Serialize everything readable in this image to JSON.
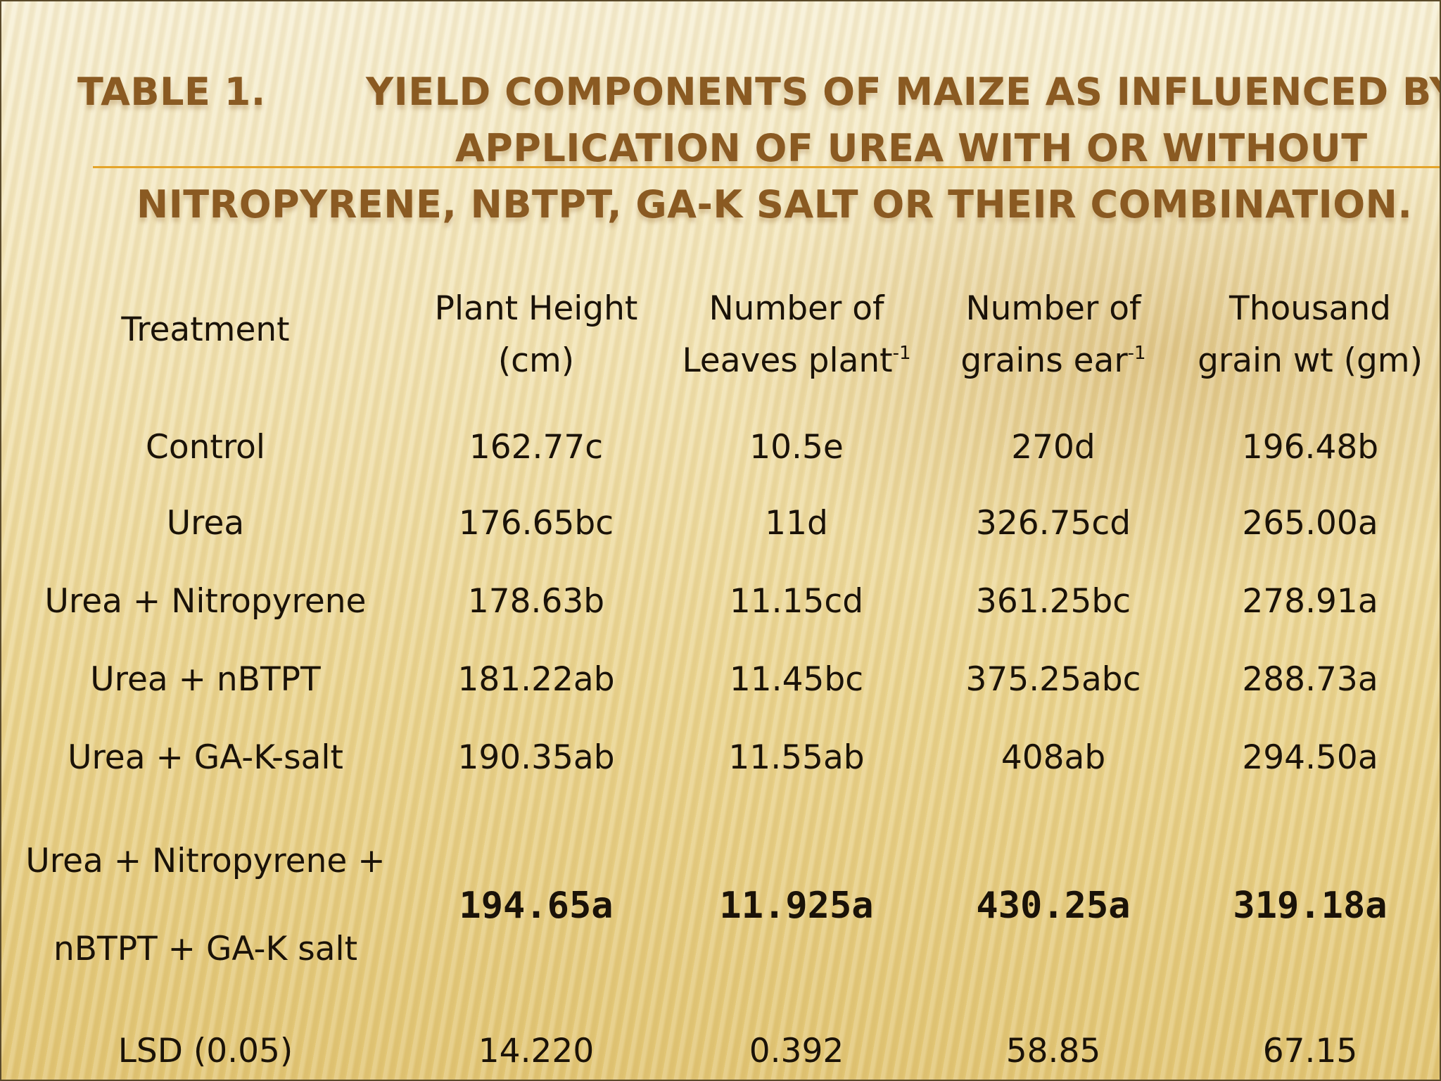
{
  "title": {
    "label": "Table 1.",
    "line1": "Yield components of maize as influenced by",
    "line2": "application of urea with or without",
    "line3": "Nitropyrene, NBTPT, GA-K salt or their combination."
  },
  "table": {
    "headers": {
      "treatment": "Treatment",
      "plant_height_1": "Plant Height",
      "plant_height_2": "(cm)",
      "leaves_1": "Number of",
      "leaves_2": "Leaves plant",
      "leaves_sup": "-1",
      "grains_1": "Number of",
      "grains_2": "grains ear",
      "grains_sup": "-1",
      "thousand_1": "Thousand",
      "thousand_2": "grain wt (gm)"
    },
    "rows": [
      {
        "treatment": "Control",
        "plant_height": "162.77c",
        "leaves": "10.5e",
        "grains": "270d",
        "thousand": "196.48b"
      },
      {
        "treatment": "Urea",
        "plant_height": "176.65bc",
        "leaves": "11d",
        "grains": "326.75cd",
        "thousand": "265.00a"
      },
      {
        "treatment": "Urea + Nitropyrene",
        "plant_height": "178.63b",
        "leaves": "11.15cd",
        "grains": "361.25bc",
        "thousand": "278.91a"
      },
      {
        "treatment": "Urea + nBTPT",
        "plant_height": "181.22ab",
        "leaves": "11.45bc",
        "grains": "375.25abc",
        "thousand": "288.73a"
      },
      {
        "treatment": "Urea + GA-K-salt",
        "plant_height": "190.35ab",
        "leaves": "11.55ab",
        "grains": "408ab",
        "thousand": "294.50a"
      },
      {
        "treatment_line1": "Urea + Nitropyrene +",
        "treatment_line2": "nBTPT + GA-K salt",
        "plant_height": "194.65a",
        "leaves": "11.925a",
        "grains": "430.25a",
        "thousand": "319.18a"
      }
    ],
    "lsd": {
      "label": "LSD (0.05)",
      "plant_height": "14.220",
      "leaves": "0.392",
      "grains": "58.85",
      "thousand": "67.15"
    }
  }
}
